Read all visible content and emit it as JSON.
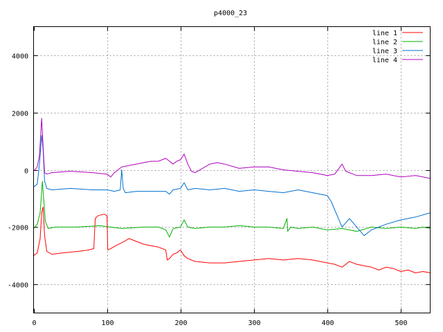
{
  "chart_data": {
    "type": "line",
    "title": "p4000_23",
    "xlabel": "",
    "ylabel": "",
    "xlim": [
      0,
      540
    ],
    "ylim": [
      -5000,
      5000
    ],
    "x_ticks": [
      0,
      100,
      200,
      300,
      400,
      500
    ],
    "y_ticks": [
      -4000,
      -2000,
      0,
      2000,
      4000
    ],
    "grid": true,
    "legend_position": "top-right",
    "series": [
      {
        "name": "line 1",
        "color": "#ff0000",
        "x": [
          0,
          5,
          9,
          11,
          13,
          15,
          18,
          25,
          40,
          60,
          75,
          82,
          84,
          88,
          96,
          100,
          101,
          105,
          112,
          120,
          130,
          140,
          150,
          160,
          170,
          180,
          182,
          185,
          190,
          195,
          200,
          205,
          210,
          220,
          240,
          260,
          280,
          300,
          320,
          340,
          360,
          380,
          400,
          410,
          420,
          430,
          440,
          450,
          460,
          470,
          480,
          490,
          500,
          510,
          520,
          530,
          540
        ],
        "y": [
          -3000,
          -2900,
          -2400,
          -1500,
          -1300,
          -2300,
          -2850,
          -2950,
          -2900,
          -2850,
          -2800,
          -2750,
          -1700,
          -1600,
          -1550,
          -1600,
          -2800,
          -2750,
          -2650,
          -2550,
          -2400,
          -2500,
          -2600,
          -2650,
          -2700,
          -2800,
          -3150,
          -3100,
          -2950,
          -2900,
          -2800,
          -3000,
          -3100,
          -3200,
          -3250,
          -3250,
          -3200,
          -3150,
          -3100,
          -3150,
          -3100,
          -3150,
          -3250,
          -3300,
          -3400,
          -3200,
          -3300,
          -3350,
          -3400,
          -3500,
          -3400,
          -3450,
          -3550,
          -3500,
          -3600,
          -3550,
          -3600
        ]
      },
      {
        "name": "line 2",
        "color": "#00b000",
        "x": [
          0,
          5,
          9,
          12,
          14,
          16,
          20,
          30,
          60,
          90,
          120,
          150,
          170,
          180,
          185,
          190,
          200,
          205,
          210,
          220,
          240,
          260,
          280,
          300,
          320,
          340,
          345,
          346,
          350,
          360,
          380,
          400,
          420,
          440,
          460,
          480,
          500,
          520,
          530,
          540
        ],
        "y": [
          -2050,
          -1900,
          -1500,
          -400,
          -1100,
          -1800,
          -2050,
          -2000,
          -2000,
          -1950,
          -2050,
          -2000,
          -2000,
          -2100,
          -2350,
          -2050,
          -2000,
          -1750,
          -2000,
          -2050,
          -2000,
          -2000,
          -1950,
          -2000,
          -2000,
          -2050,
          -1700,
          -2150,
          -2000,
          -2050,
          -2000,
          -2100,
          -2050,
          -2150,
          -2000,
          -2050,
          -2000,
          -2050,
          -2000,
          -2050
        ]
      },
      {
        "name": "line 3",
        "color": "#0070d0",
        "x": [
          0,
          5,
          8,
          11,
          13,
          15,
          18,
          25,
          50,
          80,
          100,
          110,
          118,
          120,
          122,
          125,
          140,
          160,
          180,
          185,
          190,
          200,
          205,
          210,
          220,
          240,
          260,
          280,
          300,
          320,
          340,
          360,
          380,
          400,
          405,
          410,
          420,
          430,
          440,
          450,
          460,
          480,
          500,
          520,
          540
        ],
        "y": [
          -600,
          -500,
          200,
          1200,
          700,
          -400,
          -650,
          -700,
          -650,
          -700,
          -700,
          -750,
          -700,
          0,
          -650,
          -800,
          -750,
          -750,
          -750,
          -850,
          -700,
          -650,
          -450,
          -700,
          -650,
          -700,
          -650,
          -750,
          -700,
          -750,
          -800,
          -700,
          -800,
          -900,
          -1100,
          -1400,
          -2000,
          -1700,
          -2000,
          -2300,
          -2100,
          -1900,
          -1750,
          -1650,
          -1500
        ]
      },
      {
        "name": "line 4",
        "color": "#b000c0",
        "x": [
          0,
          5,
          8,
          11,
          13,
          15,
          18,
          25,
          50,
          80,
          100,
          105,
          110,
          120,
          130,
          140,
          150,
          160,
          170,
          180,
          190,
          195,
          200,
          205,
          210,
          215,
          220,
          230,
          240,
          250,
          260,
          280,
          300,
          320,
          340,
          360,
          380,
          400,
          410,
          420,
          425,
          430,
          440,
          460,
          480,
          500,
          520,
          540
        ],
        "y": [
          -50,
          100,
          500,
          1800,
          800,
          -100,
          -150,
          -100,
          -50,
          -100,
          -150,
          -250,
          -100,
          100,
          150,
          200,
          250,
          300,
          300,
          400,
          200,
          300,
          350,
          550,
          200,
          -50,
          -100,
          50,
          200,
          250,
          200,
          50,
          100,
          100,
          0,
          -50,
          -100,
          -200,
          -150,
          200,
          -50,
          -100,
          -200,
          -200,
          -150,
          -250,
          -200,
          -300
        ]
      }
    ]
  }
}
